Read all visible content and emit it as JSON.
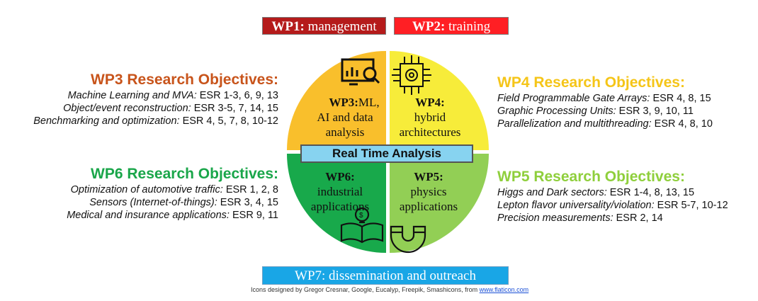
{
  "top_buttons": {
    "wp1_bold": "WP1:",
    "wp1_text": " management",
    "wp2_bold": "WP2:",
    "wp2_text": " training"
  },
  "center": "Real Time Analysis",
  "quadrants": {
    "wp3": {
      "bold": "WP3:",
      "l1": "ML,",
      "l2": "AI and data",
      "l3": "analysis",
      "color": "#f9bf2c"
    },
    "wp4": {
      "bold": "WP4:",
      "l1": "hybrid",
      "l2": "architectures",
      "color": "#f7ec3a"
    },
    "wp6": {
      "bold": "WP6:",
      "l1": "industrial",
      "l2": "applications",
      "color": "#18a94b"
    },
    "wp5": {
      "bold": "WP5:",
      "l1": "physics",
      "l2": "applications",
      "color": "#92cf55"
    }
  },
  "objectives": {
    "wp3": {
      "head": "WP3 Research Objectives:",
      "lines": [
        {
          "t": "Machine Learning and MVA:",
          "e": " ESR 1-3, 6, 9, 13"
        },
        {
          "t": "Object/event reconstruction:",
          "e": " ESR 3-5, 7, 14, 15"
        },
        {
          "t": "Benchmarking and optimization:",
          "e": " ESR 4, 5, 7, 8, 10-12"
        }
      ]
    },
    "wp6": {
      "head": "WP6 Research Objectives:",
      "lines": [
        {
          "t": "Optimization of automotive traffic:",
          "e": " ESR 1, 2, 8"
        },
        {
          "t": "Sensors (Internet-of-things):",
          "e": " ESR 3, 4, 15"
        },
        {
          "t": "Medical and insurance applications:",
          "e": " ESR 9, 11"
        }
      ]
    },
    "wp4": {
      "head": "WP4 Research Objectives:",
      "lines": [
        {
          "t": "Field Programmable Gate Arrays:",
          "e": " ESR 4, 8, 15"
        },
        {
          "t": "Graphic Processing Units:",
          "e": " ESR 3, 9, 10, 11"
        },
        {
          "t": "Parallelization and multithreading:",
          "e": " ESR 4, 8, 10"
        }
      ]
    },
    "wp5": {
      "head": "WP5 Research Objectives:",
      "lines": [
        {
          "t": "Higgs and Dark sectors:",
          "e": " ESR 1-4, 8, 13, 15"
        },
        {
          "t": "Lepton flavor universality/violation:",
          "e": " ESR 5-7, 10-12"
        },
        {
          "t": "Precision measurements:",
          "e": " ESR 2, 14"
        }
      ]
    }
  },
  "bottom": {
    "wp7": "WP7: dissemination and outreach"
  },
  "credits": {
    "text": "Icons designed by Gregor Cresnar, Google, Eucalyp, Freepik, Smashicons, from ",
    "link": "www.flaticon.com"
  }
}
